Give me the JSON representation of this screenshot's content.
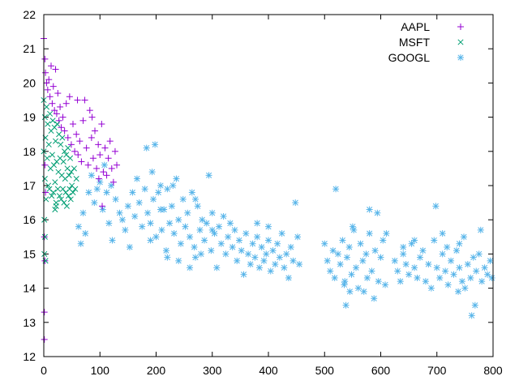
{
  "chart_data": {
    "type": "scatter",
    "title": "",
    "xlabel": "",
    "ylabel": "",
    "xlim": [
      0,
      800
    ],
    "ylim": [
      12,
      22
    ],
    "xticks": [
      "0",
      "100",
      "200",
      "300",
      "400",
      "500",
      "600",
      "700",
      "800"
    ],
    "yticks": [
      "12",
      "13",
      "14",
      "15",
      "16",
      "17",
      "18",
      "19",
      "20",
      "21",
      "22"
    ],
    "grid": false,
    "legend_position": "top-right",
    "series": [
      {
        "name": "AAPL",
        "marker": "plus",
        "color": "#9400d3",
        "points": [
          [
            0,
            21.3
          ],
          [
            2,
            20.7
          ],
          [
            3,
            20.3
          ],
          [
            5,
            20.0
          ],
          [
            7,
            19.8
          ],
          [
            9,
            20.1
          ],
          [
            11,
            19.6
          ],
          [
            13,
            20.5
          ],
          [
            15,
            19.4
          ],
          [
            17,
            19.9
          ],
          [
            19,
            19.2
          ],
          [
            21,
            20.4
          ],
          [
            23,
            19.1
          ],
          [
            25,
            19.7
          ],
          [
            27,
            18.9
          ],
          [
            29,
            19.3
          ],
          [
            31,
            18.7
          ],
          [
            34,
            19.0
          ],
          [
            37,
            18.6
          ],
          [
            40,
            19.4
          ],
          [
            43,
            18.4
          ],
          [
            46,
            19.6
          ],
          [
            49,
            18.2
          ],
          [
            52,
            18.8
          ],
          [
            55,
            18.0
          ],
          [
            58,
            18.5
          ],
          [
            61,
            17.9
          ],
          [
            64,
            18.3
          ],
          [
            67,
            17.7
          ],
          [
            70,
            18.9
          ],
          [
            73,
            19.5
          ],
          [
            76,
            18.1
          ],
          [
            79,
            17.6
          ],
          [
            82,
            19.2
          ],
          [
            85,
            18.4
          ],
          [
            88,
            17.8
          ],
          [
            91,
            18.6
          ],
          [
            94,
            17.5
          ],
          [
            97,
            18.2
          ],
          [
            100,
            17.9
          ],
          [
            103,
            18.8
          ],
          [
            106,
            17.4
          ],
          [
            109,
            18.1
          ],
          [
            112,
            17.3
          ],
          [
            115,
            17.8
          ],
          [
            118,
            18.3
          ],
          [
            121,
            17.5
          ],
          [
            124,
            17.1
          ],
          [
            127,
            18.0
          ],
          [
            130,
            17.6
          ],
          [
            104,
            16.4
          ],
          [
            98,
            17.2
          ],
          [
            86,
            19.0
          ],
          [
            60,
            19.5
          ],
          [
            1,
            13.3
          ],
          [
            1,
            12.5
          ],
          [
            2,
            14.8
          ],
          [
            1,
            15.5
          ],
          [
            3,
            16.8
          ],
          [
            2,
            17.6
          ]
        ]
      },
      {
        "name": "MSFT",
        "marker": "cross",
        "color": "#009e73",
        "points": [
          [
            0,
            19.5
          ],
          [
            0,
            18.0
          ],
          [
            1,
            16.0
          ],
          [
            1,
            15.0
          ],
          [
            2,
            19.0
          ],
          [
            2,
            17.2
          ],
          [
            3,
            18.4
          ],
          [
            4,
            16.6
          ],
          [
            5,
            19.3
          ],
          [
            6,
            17.8
          ],
          [
            7,
            18.8
          ],
          [
            8,
            17.0
          ],
          [
            9,
            18.2
          ],
          [
            10,
            16.9
          ],
          [
            11,
            19.1
          ],
          [
            12,
            17.5
          ],
          [
            13,
            18.6
          ],
          [
            14,
            16.7
          ],
          [
            15,
            17.9
          ],
          [
            16,
            18.9
          ],
          [
            17,
            16.8
          ],
          [
            18,
            17.6
          ],
          [
            19,
            18.7
          ],
          [
            20,
            17.1
          ],
          [
            21,
            18.3
          ],
          [
            22,
            16.5
          ],
          [
            23,
            17.7
          ],
          [
            24,
            18.8
          ],
          [
            25,
            16.9
          ],
          [
            26,
            17.4
          ],
          [
            27,
            18.5
          ],
          [
            28,
            16.7
          ],
          [
            29,
            17.8
          ],
          [
            30,
            18.2
          ],
          [
            31,
            16.6
          ],
          [
            32,
            17.3
          ],
          [
            33,
            18.4
          ],
          [
            34,
            16.9
          ],
          [
            35,
            17.7
          ],
          [
            36,
            16.5
          ],
          [
            37,
            18.0
          ],
          [
            38,
            17.2
          ],
          [
            39,
            16.8
          ],
          [
            40,
            17.9
          ],
          [
            41,
            16.4
          ],
          [
            42,
            17.5
          ],
          [
            43,
            18.1
          ],
          [
            44,
            16.7
          ],
          [
            45,
            17.3
          ],
          [
            46,
            16.9
          ],
          [
            47,
            17.8
          ],
          [
            48,
            16.6
          ],
          [
            49,
            17.4
          ],
          [
            50,
            17.0
          ],
          [
            52,
            16.8
          ],
          [
            54,
            17.5
          ],
          [
            56,
            16.9
          ],
          [
            58,
            17.2
          ],
          [
            20,
            16.3
          ],
          [
            22,
            16.4
          ],
          [
            3,
            14.8
          ],
          [
            2,
            15.5
          ]
        ]
      },
      {
        "name": "GOOGL",
        "marker": "star",
        "color": "#56b4e9",
        "points": [
          [
            62,
            15.8
          ],
          [
            66,
            15.3
          ],
          [
            70,
            16.2
          ],
          [
            74,
            15.6
          ],
          [
            80,
            16.8
          ],
          [
            85,
            17.3
          ],
          [
            90,
            16.5
          ],
          [
            95,
            16.9
          ],
          [
            100,
            17.1
          ],
          [
            105,
            16.3
          ],
          [
            108,
            17.6
          ],
          [
            112,
            16.8
          ],
          [
            116,
            15.9
          ],
          [
            120,
            17.0
          ],
          [
            122,
            15.4
          ],
          [
            128,
            16.6
          ],
          [
            135,
            16.2
          ],
          [
            140,
            16.0
          ],
          [
            145,
            15.7
          ],
          [
            150,
            16.4
          ],
          [
            153,
            15.2
          ],
          [
            158,
            16.8
          ],
          [
            162,
            16.1
          ],
          [
            166,
            17.2
          ],
          [
            170,
            16.5
          ],
          [
            175,
            15.8
          ],
          [
            180,
            16.9
          ],
          [
            183,
            18.1
          ],
          [
            185,
            16.2
          ],
          [
            190,
            15.9
          ],
          [
            193,
            17.4
          ],
          [
            195,
            16.6
          ],
          [
            198,
            18.2
          ],
          [
            200,
            15.5
          ],
          [
            204,
            16.8
          ],
          [
            208,
            17.0
          ],
          [
            210,
            15.7
          ],
          [
            214,
            16.3
          ],
          [
            218,
            15.1
          ],
          [
            220,
            16.9
          ],
          [
            224,
            15.9
          ],
          [
            228,
            16.4
          ],
          [
            232,
            15.6
          ],
          [
            236,
            17.2
          ],
          [
            240,
            16.0
          ],
          [
            244,
            15.3
          ],
          [
            248,
            16.6
          ],
          [
            252,
            15.8
          ],
          [
            256,
            16.2
          ],
          [
            260,
            15.5
          ],
          [
            264,
            16.8
          ],
          [
            268,
            15.2
          ],
          [
            270,
            14.9
          ],
          [
            274,
            16.4
          ],
          [
            278,
            15.7
          ],
          [
            282,
            16.0
          ],
          [
            286,
            15.4
          ],
          [
            290,
            15.9
          ],
          [
            294,
            17.3
          ],
          [
            298,
            15.1
          ],
          [
            300,
            16.2
          ],
          [
            304,
            15.6
          ],
          [
            308,
            14.6
          ],
          [
            312,
            15.8
          ],
          [
            316,
            15.3
          ],
          [
            320,
            16.1
          ],
          [
            324,
            15.0
          ],
          [
            328,
            15.5
          ],
          [
            332,
            15.9
          ],
          [
            336,
            15.2
          ],
          [
            340,
            15.7
          ],
          [
            344,
            14.8
          ],
          [
            348,
            15.4
          ],
          [
            352,
            15.1
          ],
          [
            356,
            14.4
          ],
          [
            360,
            15.6
          ],
          [
            364,
            15.0
          ],
          [
            368,
            14.7
          ],
          [
            372,
            15.3
          ],
          [
            376,
            14.9
          ],
          [
            380,
            15.5
          ],
          [
            384,
            14.6
          ],
          [
            388,
            15.2
          ],
          [
            392,
            14.8
          ],
          [
            396,
            15.0
          ],
          [
            400,
            15.4
          ],
          [
            404,
            14.5
          ],
          [
            408,
            15.1
          ],
          [
            412,
            14.7
          ],
          [
            416,
            15.3
          ],
          [
            420,
            14.9
          ],
          [
            424,
            15.6
          ],
          [
            428,
            14.6
          ],
          [
            432,
            15.0
          ],
          [
            436,
            14.3
          ],
          [
            440,
            15.2
          ],
          [
            444,
            14.8
          ],
          [
            448,
            16.5
          ],
          [
            452,
            15.5
          ],
          [
            455,
            14.7
          ],
          [
            400,
            15.8
          ],
          [
            380,
            15.9
          ],
          [
            300,
            15.7
          ],
          [
            190,
            15.4
          ],
          [
            240,
            14.8
          ],
          [
            260,
            14.6
          ],
          [
            220,
            14.9
          ],
          [
            280,
            15.0
          ],
          [
            208,
            16.3
          ],
          [
            230,
            17.0
          ],
          [
            270,
            16.6
          ],
          [
            500,
            15.3
          ],
          [
            505,
            14.8
          ],
          [
            510,
            14.5
          ],
          [
            515,
            15.1
          ],
          [
            518,
            14.3
          ],
          [
            520,
            16.9
          ],
          [
            524,
            15.0
          ],
          [
            528,
            14.7
          ],
          [
            532,
            15.4
          ],
          [
            536,
            14.2
          ],
          [
            538,
            13.5
          ],
          [
            540,
            14.9
          ],
          [
            544,
            15.2
          ],
          [
            548,
            14.4
          ],
          [
            552,
            15.7
          ],
          [
            556,
            14.6
          ],
          [
            560,
            14.0
          ],
          [
            564,
            15.3
          ],
          [
            568,
            14.8
          ],
          [
            570,
            13.9
          ],
          [
            574,
            15.0
          ],
          [
            576,
            14.3
          ],
          [
            580,
            15.6
          ],
          [
            584,
            14.5
          ],
          [
            588,
            13.7
          ],
          [
            590,
            15.1
          ],
          [
            594,
            16.2
          ],
          [
            596,
            14.2
          ],
          [
            600,
            14.9
          ],
          [
            604,
            15.4
          ],
          [
            608,
            14.1
          ],
          [
            550,
            15.8
          ],
          [
            545,
            13.9
          ],
          [
            535,
            14.1
          ],
          [
            625,
            14.8
          ],
          [
            630,
            14.5
          ],
          [
            635,
            14.2
          ],
          [
            640,
            15.0
          ],
          [
            645,
            14.7
          ],
          [
            650,
            14.4
          ],
          [
            655,
            15.3
          ],
          [
            660,
            14.6
          ],
          [
            665,
            14.3
          ],
          [
            670,
            14.9
          ],
          [
            675,
            15.1
          ],
          [
            680,
            14.2
          ],
          [
            685,
            14.7
          ],
          [
            690,
            14.0
          ],
          [
            695,
            15.4
          ],
          [
            698,
            16.4
          ],
          [
            700,
            14.6
          ],
          [
            705,
            14.3
          ],
          [
            710,
            15.0
          ],
          [
            715,
            14.5
          ],
          [
            718,
            15.2
          ],
          [
            720,
            14.1
          ],
          [
            725,
            14.8
          ],
          [
            730,
            14.4
          ],
          [
            735,
            15.1
          ],
          [
            738,
            13.9
          ],
          [
            740,
            14.6
          ],
          [
            745,
            14.2
          ],
          [
            748,
            15.5
          ],
          [
            750,
            14.0
          ],
          [
            755,
            14.7
          ],
          [
            760,
            14.3
          ],
          [
            762,
            13.2
          ],
          [
            765,
            14.9
          ],
          [
            768,
            13.5
          ],
          [
            770,
            14.5
          ],
          [
            775,
            15.0
          ],
          [
            778,
            15.7
          ],
          [
            780,
            14.2
          ],
          [
            785,
            14.6
          ],
          [
            790,
            14.4
          ],
          [
            795,
            14.8
          ],
          [
            798,
            14.3
          ],
          [
            640,
            15.2
          ],
          [
            610,
            15.6
          ],
          [
            580,
            16.3
          ],
          [
            660,
            15.4
          ],
          [
            710,
            15.6
          ],
          [
            740,
            15.3
          ]
        ]
      }
    ]
  }
}
